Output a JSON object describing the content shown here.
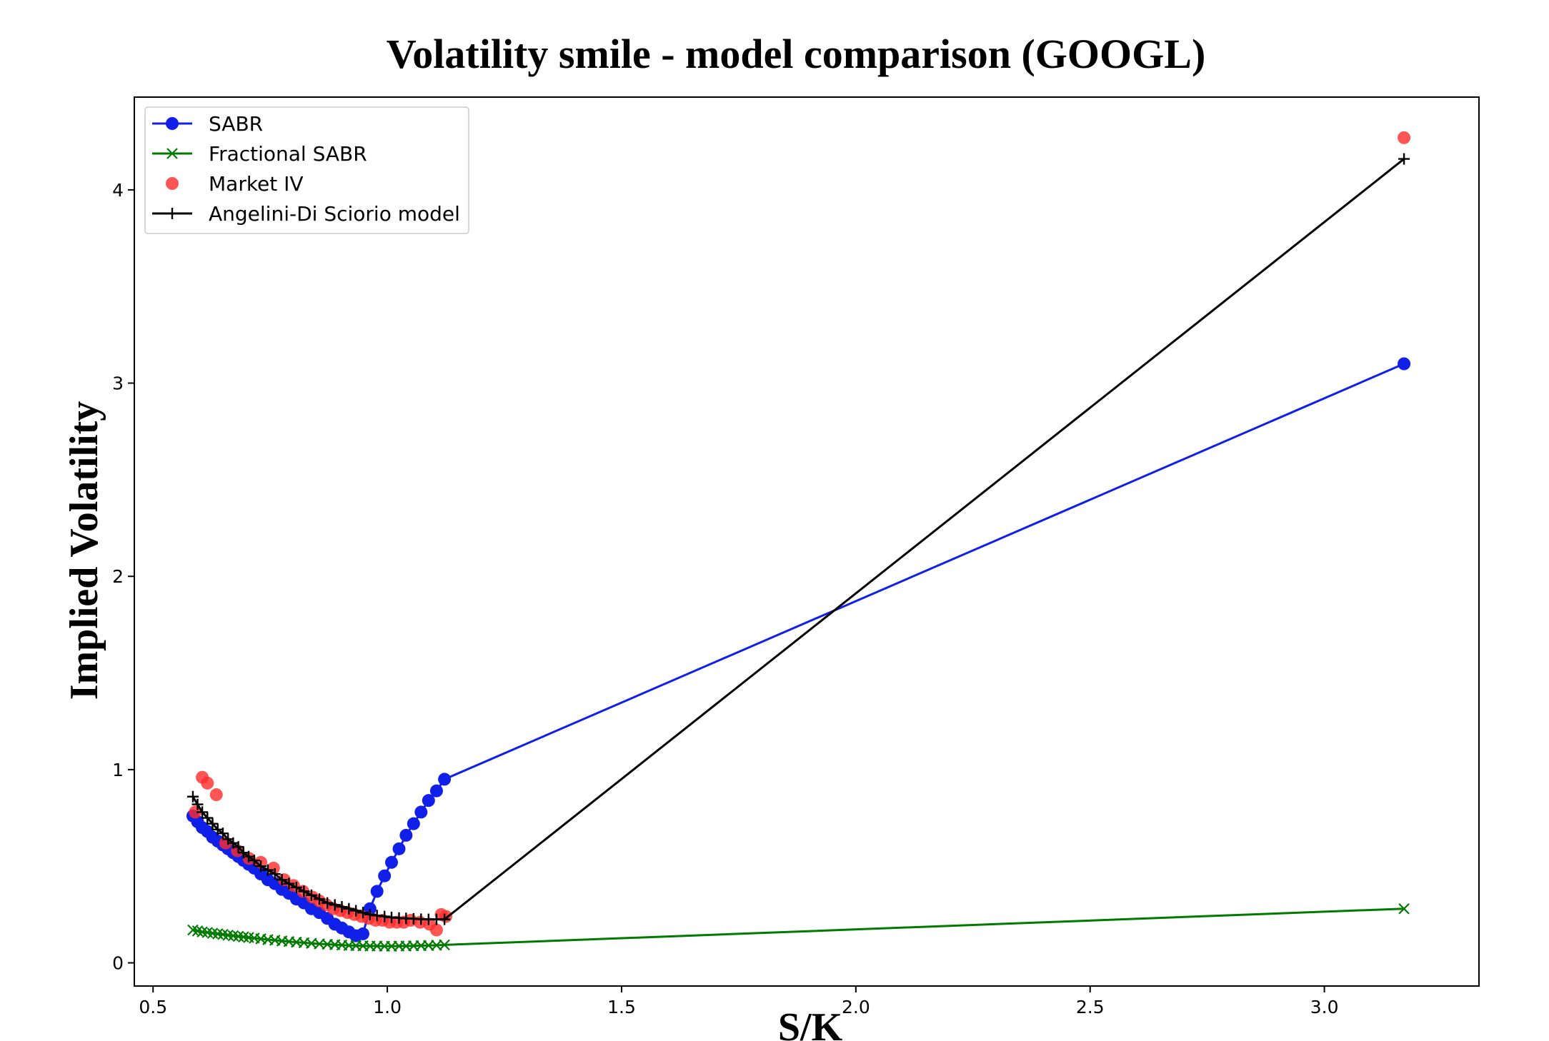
{
  "chart_data": {
    "type": "line",
    "title": "Volatility smile - model comparison (GOOGL)",
    "xlabel": "S/K",
    "ylabel": "Implied Volatility",
    "xlim": [
      0.46,
      3.33
    ],
    "ylim": [
      -0.12,
      4.48
    ],
    "xticks": [
      0.5,
      1.0,
      1.5,
      2.0,
      2.5,
      3.0
    ],
    "xtick_labels": [
      "0.5",
      "1.0",
      "1.5",
      "2.0",
      "2.5",
      "3.0"
    ],
    "yticks": [
      0,
      1,
      2,
      3,
      4
    ],
    "ytick_labels": [
      "0",
      "1",
      "2",
      "3",
      "4"
    ],
    "grid": false,
    "legend_position": "top-left",
    "series": [
      {
        "name": "SABR",
        "style": "line-marker-circle",
        "color": "#1020e8",
        "x": [
          0.585,
          0.595,
          0.605,
          0.616,
          0.627,
          0.638,
          0.649,
          0.66,
          0.671,
          0.682,
          0.693,
          0.704,
          0.716,
          0.73,
          0.745,
          0.76,
          0.775,
          0.79,
          0.806,
          0.822,
          0.838,
          0.855,
          0.872,
          0.888,
          0.903,
          0.918,
          0.933,
          0.948,
          0.963,
          0.978,
          0.994,
          1.009,
          1.025,
          1.04,
          1.056,
          1.072,
          1.088,
          1.105,
          1.122,
          3.17
        ],
        "y": [
          0.76,
          0.73,
          0.7,
          0.68,
          0.65,
          0.63,
          0.61,
          0.59,
          0.57,
          0.55,
          0.53,
          0.51,
          0.49,
          0.46,
          0.43,
          0.41,
          0.38,
          0.36,
          0.33,
          0.31,
          0.28,
          0.26,
          0.23,
          0.2,
          0.18,
          0.16,
          0.14,
          0.15,
          0.28,
          0.37,
          0.45,
          0.52,
          0.59,
          0.66,
          0.72,
          0.78,
          0.84,
          0.89,
          0.95,
          3.1
        ]
      },
      {
        "name": "Fractional SABR",
        "style": "line-marker-x",
        "color": "#007a00",
        "x": [
          0.585,
          0.595,
          0.605,
          0.616,
          0.627,
          0.638,
          0.649,
          0.66,
          0.671,
          0.682,
          0.693,
          0.704,
          0.716,
          0.73,
          0.745,
          0.76,
          0.775,
          0.79,
          0.806,
          0.822,
          0.838,
          0.855,
          0.872,
          0.888,
          0.903,
          0.918,
          0.933,
          0.948,
          0.963,
          0.978,
          0.994,
          1.009,
          1.025,
          1.04,
          1.056,
          1.072,
          1.088,
          1.105,
          1.122,
          3.17
        ],
        "y": [
          0.17,
          0.165,
          0.16,
          0.157,
          0.153,
          0.15,
          0.147,
          0.143,
          0.14,
          0.137,
          0.134,
          0.131,
          0.128,
          0.124,
          0.12,
          0.117,
          0.113,
          0.11,
          0.107,
          0.104,
          0.101,
          0.098,
          0.096,
          0.094,
          0.092,
          0.09,
          0.089,
          0.088,
          0.087,
          0.087,
          0.086,
          0.086,
          0.087,
          0.087,
          0.088,
          0.089,
          0.09,
          0.091,
          0.093,
          0.28
        ]
      },
      {
        "name": "Market IV",
        "style": "scatter-circle",
        "color": "#ff2a2a",
        "x": [
          0.59,
          0.605,
          0.616,
          0.635,
          0.655,
          0.68,
          0.705,
          0.73,
          0.757,
          0.78,
          0.8,
          0.82,
          0.84,
          0.855,
          0.87,
          0.885,
          0.9,
          0.915,
          0.93,
          0.945,
          0.96,
          0.975,
          0.99,
          1.005,
          1.02,
          1.035,
          1.05,
          1.07,
          1.09,
          1.105,
          1.115,
          1.125,
          3.17
        ],
        "y": [
          0.78,
          0.96,
          0.93,
          0.87,
          0.62,
          0.58,
          0.54,
          0.52,
          0.49,
          0.43,
          0.4,
          0.37,
          0.34,
          0.32,
          0.3,
          0.28,
          0.27,
          0.26,
          0.25,
          0.24,
          0.23,
          0.22,
          0.22,
          0.21,
          0.21,
          0.21,
          0.22,
          0.21,
          0.2,
          0.17,
          0.25,
          0.24,
          4.27
        ]
      },
      {
        "name": "Angelini-Di Sciorio model",
        "style": "line-marker-plus",
        "color": "#000000",
        "x": [
          0.585,
          0.595,
          0.605,
          0.616,
          0.627,
          0.638,
          0.649,
          0.66,
          0.671,
          0.682,
          0.693,
          0.704,
          0.716,
          0.73,
          0.745,
          0.76,
          0.775,
          0.79,
          0.806,
          0.822,
          0.838,
          0.855,
          0.872,
          0.888,
          0.903,
          0.918,
          0.933,
          0.948,
          0.963,
          0.978,
          0.994,
          1.009,
          1.025,
          1.04,
          1.056,
          1.072,
          1.088,
          1.105,
          1.122,
          3.17
        ],
        "y": [
          0.86,
          0.82,
          0.78,
          0.75,
          0.72,
          0.69,
          0.67,
          0.64,
          0.62,
          0.6,
          0.57,
          0.55,
          0.53,
          0.5,
          0.48,
          0.46,
          0.43,
          0.41,
          0.39,
          0.37,
          0.35,
          0.33,
          0.31,
          0.3,
          0.29,
          0.28,
          0.27,
          0.26,
          0.25,
          0.245,
          0.24,
          0.235,
          0.232,
          0.23,
          0.228,
          0.226,
          0.225,
          0.225,
          0.225,
          4.16
        ]
      }
    ]
  }
}
